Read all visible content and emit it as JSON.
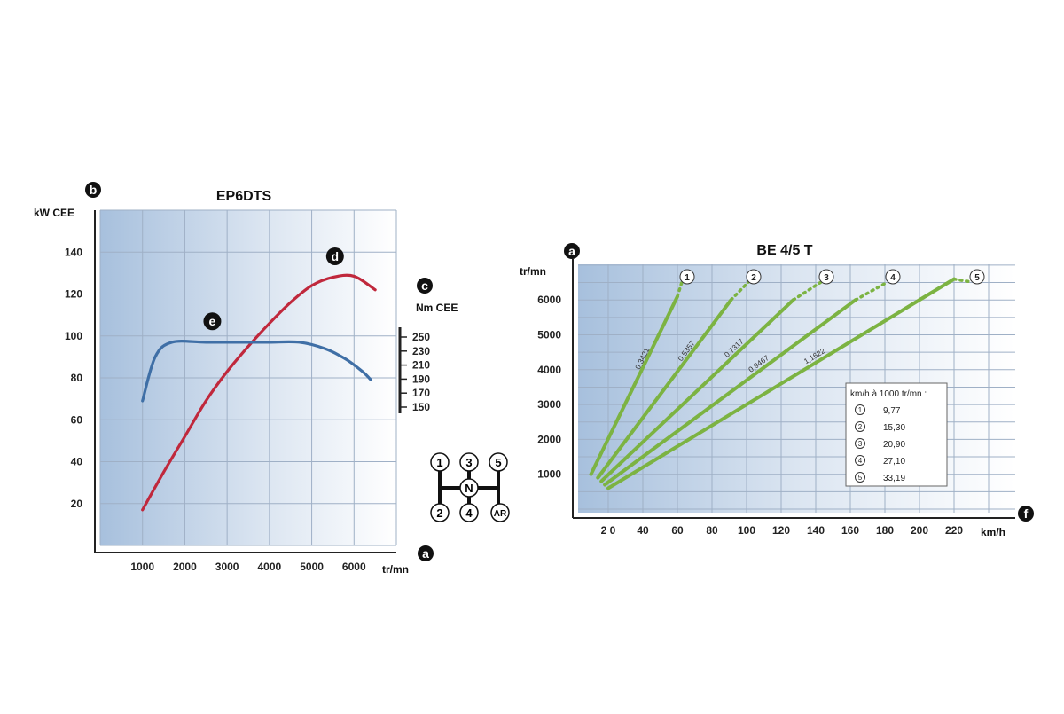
{
  "chart_data": [
    {
      "type": "line",
      "title": "EP6DTS",
      "ylabel": "kW CEE",
      "y2label": "Nm CEE",
      "xlabel": "tr/mn",
      "xlim": [
        0,
        7000
      ],
      "ylim": [
        0,
        160
      ],
      "x_ticks": [
        "1000",
        "2000",
        "3000",
        "4000",
        "5000",
        "6000"
      ],
      "y_ticks": [
        "20",
        "40",
        "60",
        "80",
        "100",
        "120",
        "140"
      ],
      "y2_ticks": [
        "250",
        "230",
        "210",
        "190",
        "170",
        "150"
      ],
      "corner_marks": {
        "y": "b",
        "x": "a",
        "y2": "c"
      },
      "series": [
        {
          "name": "d",
          "color": "#c0283c",
          "x": [
            1000,
            1500,
            2000,
            2500,
            3000,
            3500,
            4000,
            4500,
            5000,
            5500,
            6000,
            6500
          ],
          "y": [
            17,
            35,
            52,
            69,
            83,
            95,
            106,
            116,
            124,
            128,
            128.5,
            122
          ]
        },
        {
          "name": "e",
          "color": "#3f6fa6",
          "x": [
            1000,
            1300,
            1700,
            2500,
            3500,
            4000,
            4700,
            5300,
            5800,
            6200,
            6400
          ],
          "y": [
            69,
            90,
            97,
            97,
            97,
            97,
            97,
            94,
            89,
            83,
            79
          ]
        }
      ]
    },
    {
      "type": "line",
      "title": "BE 4/5 T",
      "ylabel": "tr/mn",
      "xlabel": "km/h",
      "xlim": [
        0,
        240
      ],
      "ylim": [
        0,
        7000
      ],
      "x_ticks": [
        "2 0",
        "40",
        "60",
        "80",
        "100",
        "120",
        "140",
        "160",
        "180",
        "200",
        "220"
      ],
      "y_ticks": [
        "1000",
        "2000",
        "3000",
        "4000",
        "5000",
        "6000"
      ],
      "corner_marks": {
        "y": "a",
        "x": "f"
      },
      "series": [
        {
          "name": "1",
          "ratio_label": "0,3421",
          "color": "#7cb342",
          "x": [
            10,
            60
          ],
          "y": [
            1000,
            6100
          ]
        },
        {
          "name": "2",
          "ratio_label": "0,5357",
          "color": "#7cb342",
          "x": [
            14,
            91
          ],
          "y": [
            900,
            6000
          ]
        },
        {
          "name": "3",
          "ratio_label": "0,7317",
          "color": "#7cb342",
          "x": [
            16,
            127
          ],
          "y": [
            800,
            6000
          ]
        },
        {
          "name": "4",
          "ratio_label": "0,9467",
          "color": "#7cb342",
          "x": [
            18,
            163
          ],
          "y": [
            700,
            6000
          ]
        },
        {
          "name": "5",
          "ratio_label": "1,1622",
          "color": "#7cb342",
          "x": [
            20,
            220
          ],
          "y": [
            600,
            6600
          ]
        }
      ],
      "legend": {
        "title": "km/h à 1000 tr/mn :",
        "entries": [
          {
            "gear": "1",
            "value": "9,77"
          },
          {
            "gear": "2",
            "value": "15,30"
          },
          {
            "gear": "3",
            "value": "20,90"
          },
          {
            "gear": "4",
            "value": "27,10"
          },
          {
            "gear": "5",
            "value": "33,19"
          }
        ]
      }
    }
  ],
  "gear_shift": {
    "top": [
      "1",
      "3",
      "5"
    ],
    "bottom": [
      "2",
      "4",
      "AR"
    ],
    "neutral": "N"
  }
}
